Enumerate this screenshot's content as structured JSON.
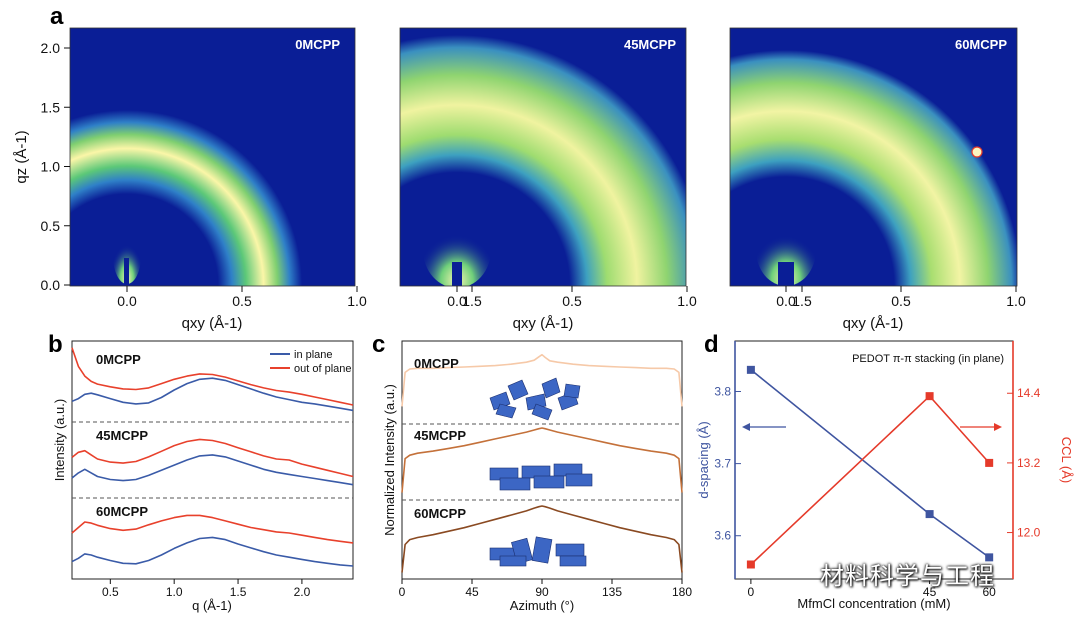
{
  "watermark": "材料科学与工程",
  "colors": {
    "map_bg": "#0a1e96",
    "in_plane": "#3a5ba8",
    "out_of_plane": "#e8412c",
    "c_0": "#f6c9a8",
    "c_45": "#c4713a",
    "c_60": "#8a4a22",
    "d_spacing": "#3f55a0",
    "ccl": "#e53a2a"
  },
  "panel_a": {
    "letter": "a",
    "xlabel": "qxy (Å-1)",
    "ylabel": "qz (Å-1)",
    "xticks": [
      "0.0",
      "0.5",
      "1.0",
      "1.5"
    ],
    "yticks": [
      "0.0",
      "0.5",
      "1.0",
      "1.5",
      "2.0"
    ],
    "maps": [
      {
        "label": "0MCPP"
      },
      {
        "label": "45MCPP"
      },
      {
        "label": "60MCPP"
      }
    ]
  },
  "chart_data": [
    {
      "type": "line",
      "panel": "b",
      "xlabel": "q (Å-1)",
      "ylabel": "Intensity (a.u.)",
      "xlim": [
        0.2,
        2.4
      ],
      "xticks": [
        "0.5",
        "1.0",
        "1.5",
        "2.0"
      ],
      "legend": [
        "in plane",
        "out of plane"
      ],
      "x": [
        0.2,
        0.25,
        0.3,
        0.35,
        0.4,
        0.5,
        0.6,
        0.7,
        0.8,
        0.9,
        1.0,
        1.1,
        1.2,
        1.3,
        1.4,
        1.5,
        1.6,
        1.7,
        1.8,
        1.9,
        2.0,
        2.1,
        2.2,
        2.3,
        2.4
      ],
      "groups": [
        {
          "name": "0MCPP",
          "series": [
            {
              "name": "in plane",
              "values": [
                0.35,
                0.4,
                0.48,
                0.5,
                0.47,
                0.4,
                0.33,
                0.3,
                0.32,
                0.42,
                0.56,
                0.68,
                0.76,
                0.78,
                0.74,
                0.66,
                0.58,
                0.5,
                0.43,
                0.38,
                0.33,
                0.3,
                0.26,
                0.22,
                0.18
              ]
            },
            {
              "name": "out of plane",
              "values": [
                1.35,
                1.0,
                0.82,
                0.72,
                0.67,
                0.62,
                0.58,
                0.57,
                0.6,
                0.68,
                0.76,
                0.82,
                0.86,
                0.85,
                0.8,
                0.73,
                0.66,
                0.6,
                0.55,
                0.52,
                0.48,
                0.43,
                0.38,
                0.33,
                0.28
              ]
            }
          ]
        },
        {
          "name": "45MCPP",
          "series": [
            {
              "name": "in plane",
              "values": [
                0.35,
                0.45,
                0.52,
                0.45,
                0.38,
                0.32,
                0.3,
                0.32,
                0.4,
                0.5,
                0.6,
                0.7,
                0.78,
                0.8,
                0.76,
                0.68,
                0.6,
                0.52,
                0.46,
                0.42,
                0.38,
                0.34,
                0.3,
                0.26,
                0.22
              ]
            },
            {
              "name": "out of plane",
              "values": [
                0.75,
                0.85,
                0.88,
                0.8,
                0.72,
                0.66,
                0.64,
                0.67,
                0.76,
                0.87,
                0.98,
                1.06,
                1.1,
                1.08,
                1.02,
                0.94,
                0.86,
                0.78,
                0.72,
                0.7,
                0.62,
                0.56,
                0.5,
                0.44,
                0.38
              ]
            }
          ]
        },
        {
          "name": "60MCPP",
          "series": [
            {
              "name": "in plane",
              "values": [
                0.28,
                0.34,
                0.42,
                0.4,
                0.36,
                0.3,
                0.25,
                0.24,
                0.3,
                0.4,
                0.52,
                0.62,
                0.7,
                0.72,
                0.68,
                0.6,
                0.53,
                0.46,
                0.4,
                0.36,
                0.32,
                0.28,
                0.25,
                0.22,
                0.2
              ]
            },
            {
              "name": "out of plane",
              "values": [
                0.8,
                0.9,
                1.0,
                0.98,
                0.94,
                0.88,
                0.85,
                0.87,
                0.95,
                1.02,
                1.08,
                1.12,
                1.12,
                1.08,
                1.02,
                0.96,
                0.9,
                0.86,
                0.82,
                0.8,
                0.76,
                0.72,
                0.68,
                0.65,
                0.62
              ]
            }
          ]
        }
      ]
    },
    {
      "type": "line",
      "panel": "c",
      "xlabel": "Azimuth (°)",
      "ylabel": "Normalized Intensity (a.u.)",
      "xlim": [
        0,
        180
      ],
      "xticks": [
        "0",
        "45",
        "90",
        "135",
        "180"
      ],
      "x": [
        0,
        2,
        5,
        10,
        20,
        30,
        40,
        50,
        60,
        70,
        80,
        85,
        88,
        90,
        92,
        95,
        100,
        110,
        120,
        130,
        140,
        150,
        160,
        170,
        175,
        178,
        180
      ],
      "series": [
        {
          "name": "0MCPP",
          "values": [
            0.2,
            0.7,
            0.75,
            0.76,
            0.76,
            0.77,
            0.78,
            0.79,
            0.8,
            0.82,
            0.85,
            0.88,
            0.93,
            0.96,
            0.92,
            0.87,
            0.85,
            0.82,
            0.8,
            0.79,
            0.78,
            0.77,
            0.76,
            0.76,
            0.75,
            0.7,
            0.2
          ]
        },
        {
          "name": "45MCPP",
          "values": [
            0.05,
            0.55,
            0.6,
            0.63,
            0.66,
            0.7,
            0.74,
            0.79,
            0.84,
            0.89,
            0.94,
            0.97,
            0.99,
            1.0,
            0.99,
            0.97,
            0.94,
            0.89,
            0.84,
            0.79,
            0.74,
            0.7,
            0.66,
            0.63,
            0.6,
            0.55,
            0.05
          ]
        },
        {
          "name": "60MCPP",
          "values": [
            0.05,
            0.45,
            0.52,
            0.55,
            0.59,
            0.64,
            0.69,
            0.75,
            0.81,
            0.87,
            0.93,
            0.97,
            0.99,
            1.0,
            0.99,
            0.97,
            0.93,
            0.87,
            0.81,
            0.75,
            0.69,
            0.64,
            0.59,
            0.55,
            0.52,
            0.45,
            0.05
          ]
        }
      ]
    },
    {
      "type": "line",
      "panel": "d",
      "title": "PEDOT π-π stacking (in plane)",
      "xlabel": "MfmCl concentration (mM)",
      "xticks": [
        "0",
        "45",
        "60"
      ],
      "x": [
        0,
        45,
        60
      ],
      "xlim": [
        -4,
        66
      ],
      "y_left": {
        "label": "d-spacing (Å)",
        "lim": [
          3.54,
          3.87
        ],
        "ticks": [
          "3.6",
          "3.7",
          "3.8"
        ]
      },
      "y_right": {
        "label": "CCL (Å)",
        "lim": [
          11.2,
          15.3
        ],
        "ticks": [
          "12.0",
          "13.2",
          "14.4"
        ]
      },
      "series": [
        {
          "name": "d-spacing",
          "axis": "left",
          "values": [
            3.83,
            3.63,
            3.57
          ]
        },
        {
          "name": "CCL",
          "axis": "right",
          "values": [
            11.45,
            14.35,
            13.2
          ]
        }
      ]
    }
  ]
}
